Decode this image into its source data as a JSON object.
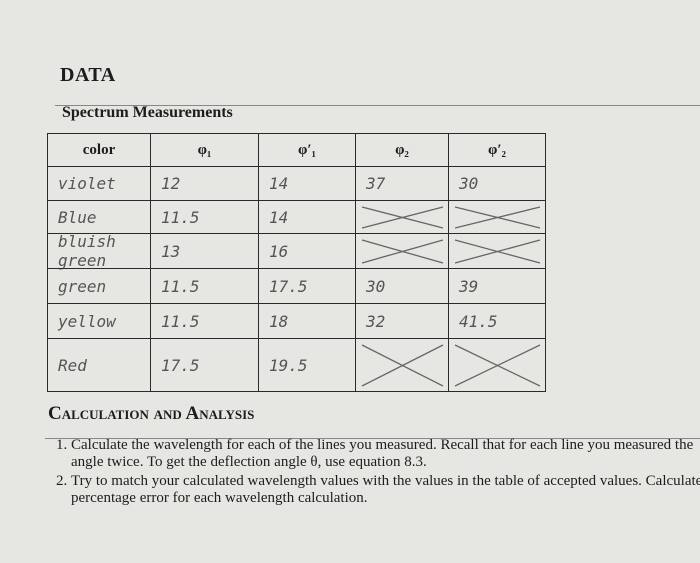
{
  "heading": "DATA",
  "subheading": "Spectrum Measurements",
  "table": {
    "header": [
      "color",
      "φ₁",
      "φ′₁",
      "φ₂",
      "φ′₂"
    ],
    "rows": [
      [
        "violet",
        "12",
        "14",
        "37",
        "30"
      ],
      [
        "Blue",
        "11.5",
        "14"
      ],
      [
        "bluish green",
        "13",
        "16"
      ],
      [
        "green",
        "11.5",
        "17.5",
        "30",
        "39"
      ],
      [
        "yellow",
        "11.5",
        "18",
        "32",
        "41.5"
      ],
      [
        "Red",
        "17.5",
        "19.5"
      ]
    ]
  },
  "calculation": {
    "title": "Calculation and Analysis",
    "items": [
      "Calculate the wavelength for each of the lines you measured. Recall that for each line you measured the angle twice. To get the deflection angle θ, use equation 8.3.",
      "Try to match your calculated wavelength values with the values in the table of accepted values. Calculate the percentage error for each wavelength calculation."
    ]
  }
}
